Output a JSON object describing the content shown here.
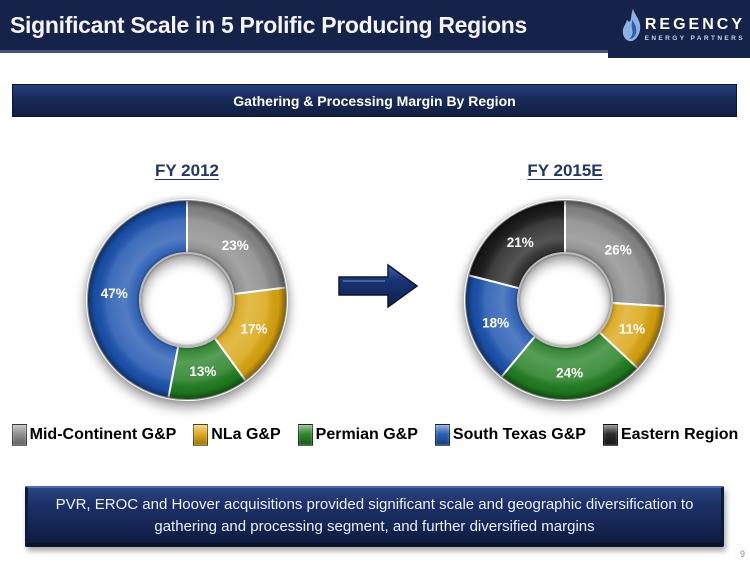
{
  "header": {
    "title": "Significant Scale in 5 Prolific Producing Regions",
    "logo": {
      "name": "REGENCY",
      "subtitle": "ENERGY PARTNERS"
    }
  },
  "banner": {
    "text": "Gathering & Processing Margin By Region"
  },
  "chart_data": [
    {
      "type": "pie",
      "donut": true,
      "title": "FY 2012",
      "categories": [
        "Mid-Continent G&P",
        "NLa G&P",
        "Permian G&P",
        "South Texas G&P"
      ],
      "values": [
        23,
        17,
        13,
        47
      ],
      "data_labels": [
        "23%",
        "17%",
        "13%",
        "47%"
      ],
      "colors": [
        "#868686",
        "#D9A40D",
        "#1F7D1F",
        "#1A52AE"
      ],
      "start_angle_deg": 0,
      "direction": "clockwise",
      "legend_position": "bottom-shared"
    },
    {
      "type": "pie",
      "donut": true,
      "title": "FY 2015E",
      "categories": [
        "Mid-Continent G&P",
        "NLa G&P",
        "Permian G&P",
        "South Texas G&P",
        "Eastern Region"
      ],
      "values": [
        26,
        11,
        24,
        18,
        21
      ],
      "data_labels": [
        "26%",
        "11%",
        "24%",
        "18%",
        "21%"
      ],
      "colors": [
        "#868686",
        "#D9A40D",
        "#1F7D1F",
        "#1A52AE",
        "#1B1B1B"
      ],
      "start_angle_deg": 0,
      "direction": "clockwise",
      "legend_position": "bottom-shared"
    }
  ],
  "legend": {
    "items": [
      {
        "label": "Mid-Continent G&P",
        "color": "#868686"
      },
      {
        "label": "NLa G&P",
        "color": "#D9A40D"
      },
      {
        "label": "Permian G&P",
        "color": "#1F7D1F"
      },
      {
        "label": "South Texas G&P",
        "color": "#1A52AE"
      },
      {
        "label": "Eastern Region",
        "color": "#1B1B1B"
      }
    ]
  },
  "footer_box": {
    "line1": "PVR, EROC and Hoover acquisitions provided significant scale and geographic diversification to",
    "line2": "gathering and processing segment, and further diversified margins"
  },
  "page_number": "9"
}
